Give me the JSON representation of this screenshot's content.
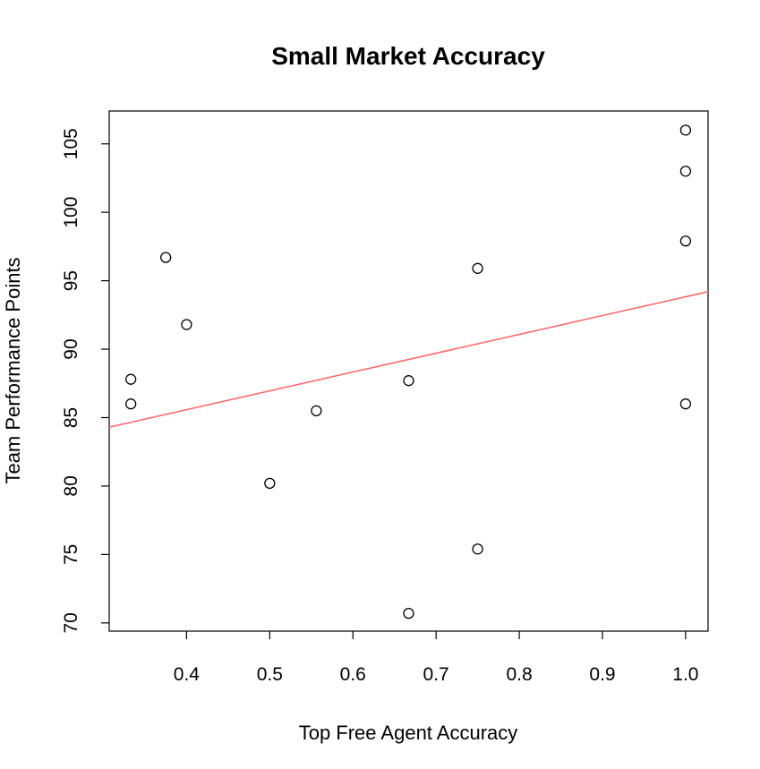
{
  "chart_data": {
    "type": "scatter",
    "title": "Small Market Accuracy",
    "xlabel": "Top Free Agent Accuracy",
    "ylabel": "Team Performance Points",
    "xlim": [
      0.307,
      1.027
    ],
    "ylim": [
      69.4,
      107.4
    ],
    "x_ticks": [
      "0.4",
      "0.5",
      "0.6",
      "0.7",
      "0.8",
      "0.9",
      "1.0"
    ],
    "y_ticks": [
      "70",
      "75",
      "80",
      "85",
      "90",
      "95",
      "100",
      "105"
    ],
    "grid": false,
    "points": [
      {
        "x": 0.333,
        "y": 87.8
      },
      {
        "x": 0.333,
        "y": 86.0
      },
      {
        "x": 0.375,
        "y": 96.7
      },
      {
        "x": 0.4,
        "y": 91.8
      },
      {
        "x": 0.5,
        "y": 80.2
      },
      {
        "x": 0.556,
        "y": 85.5
      },
      {
        "x": 0.667,
        "y": 87.7
      },
      {
        "x": 0.667,
        "y": 70.7
      },
      {
        "x": 0.75,
        "y": 95.9
      },
      {
        "x": 0.75,
        "y": 75.4
      },
      {
        "x": 1.0,
        "y": 106.0
      },
      {
        "x": 1.0,
        "y": 103.0
      },
      {
        "x": 1.0,
        "y": 97.9
      },
      {
        "x": 1.0,
        "y": 86.0
      }
    ],
    "regression_line": {
      "color": "#ff6b6b",
      "start": {
        "x": 0.307,
        "y": 84.3
      },
      "end": {
        "x": 1.027,
        "y": 94.2
      }
    },
    "point_style": "open-circle",
    "point_color": "#000000"
  }
}
